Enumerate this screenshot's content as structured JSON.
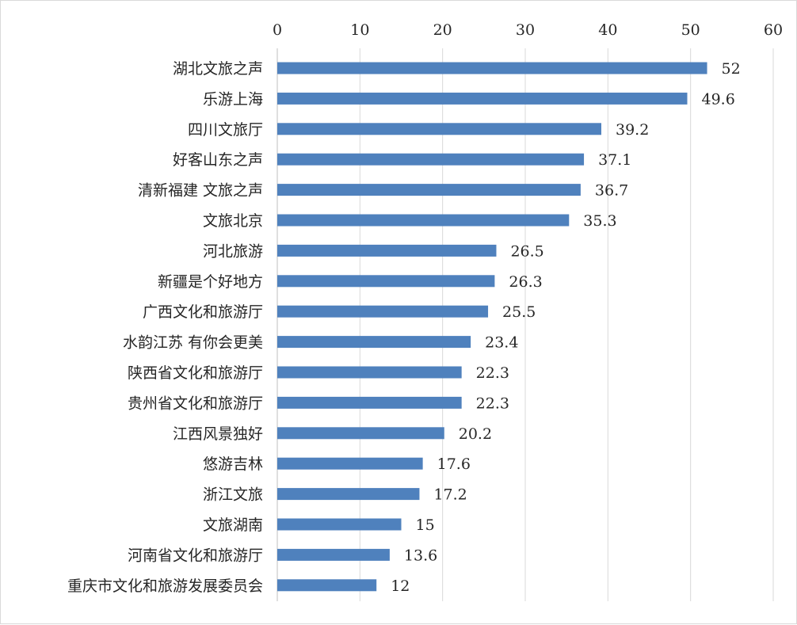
{
  "chart_data": {
    "type": "bar",
    "orientation": "horizontal",
    "title": "",
    "xlabel": "",
    "ylabel": "",
    "xlim": [
      0,
      60
    ],
    "x_ticks": [
      0,
      10,
      20,
      30,
      40,
      50,
      60
    ],
    "x_axis_position": "top",
    "grid": "vertical",
    "legend": "none",
    "bar_color": "#4f81bd",
    "categories": [
      "湖北文旅之声",
      "乐游上海",
      "四川文旅厅",
      "好客山东之声",
      "清新福建 文旅之声",
      "文旅北京",
      "河北旅游",
      "新疆是个好地方",
      "广西文化和旅游厅",
      "水韵江苏 有你会更美",
      "陕西省文化和旅游厅",
      "贵州省文化和旅游厅",
      "江西风景独好",
      "悠游吉林",
      "浙江文旅",
      "文旅湖南",
      "河南省文化和旅游厅",
      "重庆市文化和旅游发展委员会"
    ],
    "values": [
      52,
      49.6,
      39.2,
      37.1,
      36.7,
      35.3,
      26.5,
      26.3,
      25.5,
      23.4,
      22.3,
      22.3,
      20.2,
      17.6,
      17.2,
      15,
      13.6,
      12
    ],
    "value_labels": [
      "52",
      "49.6",
      "39.2",
      "37.1",
      "36.7",
      "35.3",
      "26.5",
      "26.3",
      "25.5",
      "23.4",
      "22.3",
      "22.3",
      "20.2",
      "17.6",
      "17.2",
      "15",
      "13.6",
      "12"
    ]
  }
}
